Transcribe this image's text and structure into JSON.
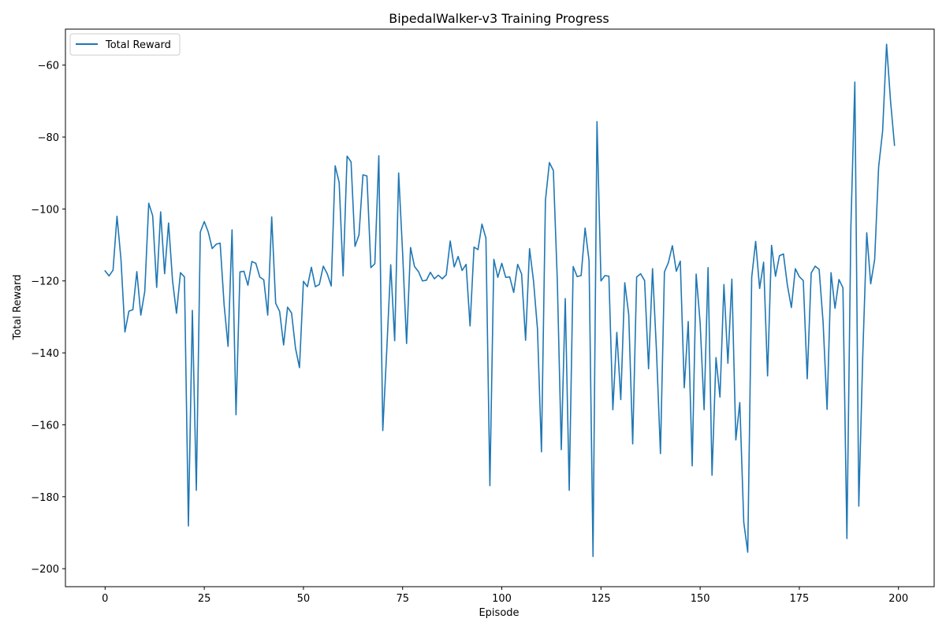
{
  "chart_data": {
    "type": "line",
    "title": "BipedalWalker-v3 Training Progress",
    "xlabel": "Episode",
    "ylabel": "Total Reward",
    "xlim": [
      -10,
      209
    ],
    "ylim": [
      -205,
      -50
    ],
    "xticks": [
      0,
      25,
      50,
      75,
      100,
      125,
      150,
      175,
      200
    ],
    "yticks": [
      -200,
      -180,
      -160,
      -140,
      -120,
      -100,
      -80,
      -60
    ],
    "grid": false,
    "legend_position": "upper-left",
    "series": [
      {
        "name": "Total Reward",
        "color": "#1f77b4",
        "x": [
          0,
          1,
          2,
          3,
          4,
          5,
          6,
          7,
          8,
          9,
          10,
          11,
          12,
          13,
          14,
          15,
          16,
          17,
          18,
          19,
          20,
          21,
          22,
          23,
          24,
          25,
          26,
          27,
          28,
          29,
          30,
          31,
          32,
          33,
          34,
          35,
          36,
          37,
          38,
          39,
          40,
          41,
          42,
          43,
          44,
          45,
          46,
          47,
          48,
          49,
          50,
          51,
          52,
          53,
          54,
          55,
          56,
          57,
          58,
          59,
          60,
          61,
          62,
          63,
          64,
          65,
          66,
          67,
          68,
          69,
          70,
          71,
          72,
          73,
          74,
          75,
          76,
          77,
          78,
          79,
          80,
          81,
          82,
          83,
          84,
          85,
          86,
          87,
          88,
          89,
          90,
          91,
          92,
          93,
          94,
          95,
          96,
          97,
          98,
          99,
          100,
          101,
          102,
          103,
          104,
          105,
          106,
          107,
          108,
          109,
          110,
          111,
          112,
          113,
          114,
          115,
          116,
          117,
          118,
          119,
          120,
          121,
          122,
          123,
          124,
          125,
          126,
          127,
          128,
          129,
          130,
          131,
          132,
          133,
          134,
          135,
          136,
          137,
          138,
          139,
          140,
          141,
          142,
          143,
          144,
          145,
          146,
          147,
          148,
          149,
          150,
          151,
          152,
          153,
          154,
          155,
          156,
          157,
          158,
          159,
          160,
          161,
          162,
          163,
          164,
          165,
          166,
          167,
          168,
          169,
          170,
          171,
          172,
          173,
          174,
          175,
          176,
          177,
          178,
          179,
          180,
          181,
          182,
          183,
          184,
          185,
          186,
          187,
          188,
          189,
          190,
          191,
          192,
          193,
          194,
          195,
          196,
          197,
          198,
          199
        ],
        "y": [
          -117.2,
          -118.6,
          -117.0,
          -102.0,
          -114.0,
          -134.2,
          -128.4,
          -128.0,
          -117.4,
          -129.5,
          -122.9,
          -98.4,
          -101.9,
          -121.8,
          -100.8,
          -118.0,
          -103.9,
          -119.9,
          -129.0,
          -117.7,
          -118.9,
          -188.1,
          -128.2,
          -178.2,
          -106.4,
          -103.5,
          -106.4,
          -111.0,
          -109.8,
          -109.5,
          -126.6,
          -138.2,
          -105.8,
          -157.2,
          -117.5,
          -117.3,
          -121.2,
          -114.6,
          -115.1,
          -118.9,
          -119.7,
          -129.5,
          -102.2,
          -126.2,
          -128.5,
          -137.8,
          -127.3,
          -128.9,
          -138.7,
          -144.1,
          -120.1,
          -121.6,
          -116.2,
          -121.6,
          -121.0,
          -115.9,
          -118.0,
          -121.4,
          -88.0,
          -92.6,
          -118.6,
          -85.3,
          -86.9,
          -110.4,
          -107.2,
          -90.5,
          -90.8,
          -116.3,
          -115.2,
          -85.2,
          -161.6,
          -139.3,
          -115.5,
          -136.6,
          -90.0,
          -112.2,
          -137.4,
          -110.7,
          -116.0,
          -117.4,
          -120.0,
          -119.8,
          -117.6,
          -119.4,
          -118.4,
          -119.4,
          -118.3,
          -108.9,
          -116.1,
          -113.2,
          -117.1,
          -115.4,
          -132.5,
          -110.6,
          -111.3,
          -104.2,
          -108.1,
          -176.9,
          -114.0,
          -119.0,
          -115.1,
          -119.0,
          -118.9,
          -123.2,
          -115.4,
          -118.1,
          -136.5,
          -111.0,
          -120.0,
          -133.4,
          -167.5,
          -97.6,
          -87.1,
          -89.3,
          -120.0,
          -166.9,
          -124.9,
          -178.2,
          -116.0,
          -118.8,
          -118.5,
          -105.3,
          -114.4,
          -196.6,
          -75.7,
          -120.0,
          -118.5,
          -118.7,
          -155.8,
          -134.3,
          -153.0,
          -120.5,
          -129.3,
          -165.3,
          -118.9,
          -118.0,
          -119.9,
          -144.4,
          -116.6,
          -139.5,
          -168.0,
          -117.5,
          -114.9,
          -110.2,
          -117.3,
          -114.5,
          -149.7,
          -131.3,
          -171.4,
          -118.1,
          -131.6,
          -155.8,
          -116.3,
          -174.0,
          -141.3,
          -152.3,
          -121.0,
          -142.9,
          -119.5,
          -164.2,
          -153.8,
          -187.1,
          -195.4,
          -119.0,
          -109.0,
          -122.1,
          -114.8,
          -146.4,
          -110.1,
          -118.7,
          -113.0,
          -112.5,
          -121.2,
          -127.4,
          -116.6,
          -118.8,
          -119.9,
          -147.2,
          -117.8,
          -115.9,
          -116.8,
          -131.5,
          -155.7,
          -117.7,
          -127.6,
          -119.6,
          -121.9,
          -191.6,
          -105.2,
          -64.7,
          -182.6,
          -140.6,
          -106.6,
          -120.8,
          -114.0,
          -88.3,
          -78.4,
          -54.2,
          -70.0,
          -82.3
        ]
      }
    ]
  }
}
